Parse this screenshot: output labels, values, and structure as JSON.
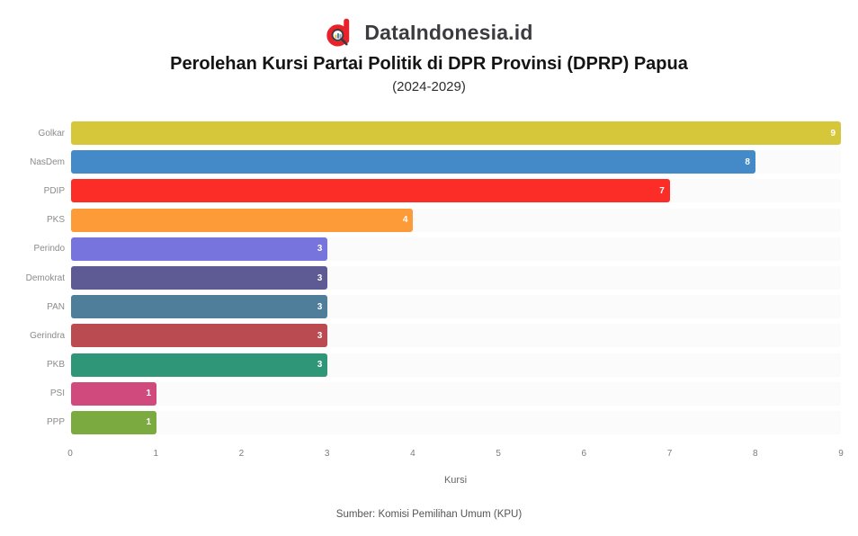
{
  "header": {
    "brand": "DataIndonesia.id"
  },
  "title": "Perolehan Kursi Partai Politik di DPR Provinsi (DPRP) Papua",
  "subtitle": "(2024-2029)",
  "source": "Sumber: Komisi Pemilihan Umum (KPU)",
  "brand_color": "#e8222a",
  "chart_data": {
    "type": "bar",
    "orientation": "horizontal",
    "title": "Perolehan Kursi Partai Politik di DPR Provinsi (DPRP) Papua (2024-2029)",
    "categories": [
      "Golkar",
      "NasDem",
      "PDIP",
      "PKS",
      "Perindo",
      "Demokrat",
      "PAN",
      "Gerindra",
      "PKB",
      "PSI",
      "PPP"
    ],
    "values": [
      9,
      8,
      7,
      4,
      3,
      3,
      3,
      3,
      3,
      1,
      1
    ],
    "colors": [
      "#d6c73a",
      "#4489c8",
      "#fc2d26",
      "#fc9b38",
      "#7874dd",
      "#5e5b94",
      "#4e7e99",
      "#ba4b50",
      "#2f9678",
      "#d04a7e",
      "#7aaa40"
    ],
    "xlabel": "Kursi",
    "ylabel": "",
    "xlim": [
      0,
      9
    ],
    "xticks": [
      0,
      1,
      2,
      3,
      4,
      5,
      6,
      7,
      8,
      9
    ],
    "value_labels": true,
    "grid": false,
    "legend": false
  }
}
